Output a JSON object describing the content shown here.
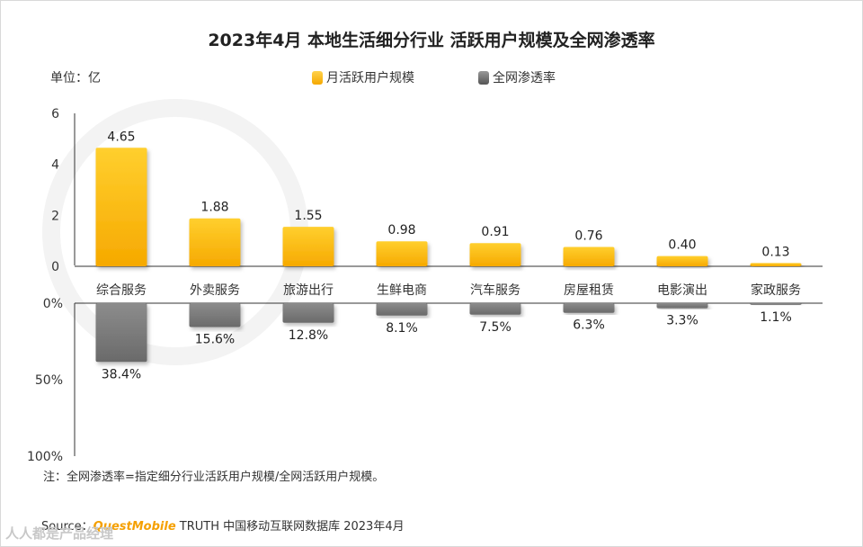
{
  "title": "2023年4月 本地生活细分行业 活跃用户规模及全网渗透率",
  "unit_label": "单位：亿",
  "legend": {
    "mau": "月活跃用户规模",
    "penetration": "全网渗透率"
  },
  "colors": {
    "mau": "#f8b800",
    "penetration": "#7f7f7f"
  },
  "chart_data": [
    {
      "type": "bar",
      "title": "月活跃用户规模",
      "categories": [
        "综合服务",
        "外卖服务",
        "旅游出行",
        "生鲜电商",
        "汽车服务",
        "房屋租赁",
        "电影演出",
        "家政服务"
      ],
      "values": [
        4.65,
        1.88,
        1.55,
        0.98,
        0.91,
        0.76,
        0.4,
        0.13
      ],
      "data_labels": [
        "4.65",
        "1.88",
        "1.55",
        "0.98",
        "0.91",
        "0.76",
        "0.40",
        "0.13"
      ],
      "ylabel": "亿",
      "ylim": [
        0,
        6
      ],
      "yticks": [
        "0",
        "2",
        "4",
        "6"
      ]
    },
    {
      "type": "bar",
      "title": "全网渗透率",
      "orientation": "downward",
      "categories": [
        "综合服务",
        "外卖服务",
        "旅游出行",
        "生鲜电商",
        "汽车服务",
        "房屋租赁",
        "电影演出",
        "家政服务"
      ],
      "values": [
        38.4,
        15.6,
        12.8,
        8.1,
        7.5,
        6.3,
        3.3,
        1.1
      ],
      "data_labels": [
        "38.4%",
        "15.6%",
        "12.8%",
        "8.1%",
        "7.5%",
        "6.3%",
        "3.3%",
        "1.1%"
      ],
      "ylim": [
        0,
        100
      ],
      "yticks": [
        "0%",
        "50%",
        "100%"
      ]
    }
  ],
  "note": "注：全网渗透率=指定细分行业活跃用户规模/全网活跃用户规模。",
  "source": {
    "prefix": "Source：",
    "brand": "QuestMobile",
    "rest": " TRUTH 中国移动互联网数据库 2023年4月"
  },
  "watermark": "人人都是产品经理"
}
